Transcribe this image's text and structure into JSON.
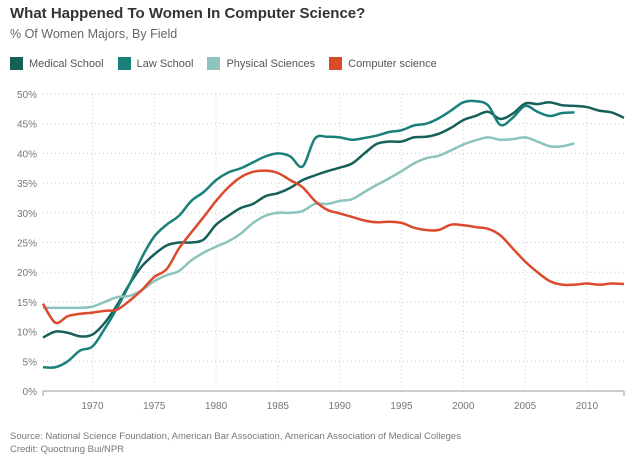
{
  "chart_data": {
    "type": "line",
    "title": "What Happened To Women In Computer Science?",
    "subtitle": "% Of Women Majors, By Field",
    "xlabel": "",
    "ylabel": "",
    "xlim": [
      1966,
      2013
    ],
    "ylim": [
      0,
      50
    ],
    "grid": true,
    "legend_position": "top-left",
    "x_ticks": [
      "1970",
      "1975",
      "1980",
      "1985",
      "1990",
      "1995",
      "2000",
      "2005",
      "2010"
    ],
    "y_ticks": [
      "0%",
      "5%",
      "10%",
      "15%",
      "20%",
      "25%",
      "30%",
      "35%",
      "40%",
      "45%",
      "50%"
    ],
    "series": [
      {
        "name": "Medical School",
        "color": "#17605a",
        "start": 1966,
        "values": [
          9,
          10,
          9.8,
          9.2,
          9.5,
          11.5,
          14.5,
          18,
          21,
          23,
          24.5,
          25,
          25,
          25.5,
          28,
          29.5,
          30.8,
          31.5,
          32.8,
          33.3,
          34.2,
          35.5,
          36.3,
          37,
          37.6,
          38.3,
          40,
          41.6,
          42,
          42,
          42.7,
          42.8,
          43.3,
          44.3,
          45.6,
          46.3,
          47,
          45.8,
          46.7,
          48.4,
          48.3,
          48.6,
          48.1,
          48,
          47.8,
          47.2,
          46.9,
          46
        ]
      },
      {
        "name": "Law School",
        "color": "#1a8079",
        "start": 1966,
        "values": [
          4,
          4,
          5,
          6.8,
          7.5,
          10.5,
          14,
          18,
          22.5,
          26,
          28,
          29.5,
          32,
          33.5,
          35.5,
          36.8,
          37.5,
          38.5,
          39.5,
          40,
          39.5,
          37.8,
          42.5,
          42.8,
          42.7,
          42.3,
          42.6,
          43,
          43.6,
          43.9,
          44.7,
          45,
          45.9,
          47.2,
          48.6,
          48.8,
          48.1,
          44.8,
          46,
          48,
          47,
          46.3,
          46.8,
          46.9
        ]
      },
      {
        "name": "Physical Sciences",
        "color": "#8cc4bd",
        "start": 1966,
        "values": [
          14,
          14,
          14,
          14,
          14.2,
          15,
          15.8,
          16,
          17,
          18.5,
          19.5,
          20.2,
          22,
          23.3,
          24.3,
          25.2,
          26.5,
          28.3,
          29.5,
          30,
          30,
          30.3,
          31.5,
          31.5,
          32,
          32.3,
          33.5,
          34.7,
          35.8,
          37,
          38.3,
          39.2,
          39.6,
          40.5,
          41.5,
          42.2,
          42.7,
          42.3,
          42.4,
          42.7,
          42,
          41.2,
          41.2,
          41.7
        ]
      },
      {
        "name": "Computer science",
        "color": "#dc4a2c",
        "start": 1966,
        "values": [
          14.7,
          11.5,
          12.6,
          13,
          13.2,
          13.5,
          13.7,
          15.2,
          17,
          19.2,
          20.5,
          24,
          26.7,
          29.3,
          32,
          34.3,
          36,
          36.9,
          37.1,
          36.7,
          35.5,
          34.3,
          32,
          30.5,
          29.9,
          29.3,
          28.7,
          28.4,
          28.5,
          28.3,
          27.5,
          27.1,
          27.1,
          28,
          27.9,
          27.6,
          27.3,
          26.2,
          24,
          21.8,
          20,
          18.5,
          17.9,
          17.9,
          18.1,
          17.9,
          18.1,
          18
        ]
      }
    ]
  },
  "footer": {
    "source": "Source: National Science Foundation, American Bar Association, American Association of Medical Colleges",
    "credit": "Credit: Quoctrung Bui/NPR"
  }
}
